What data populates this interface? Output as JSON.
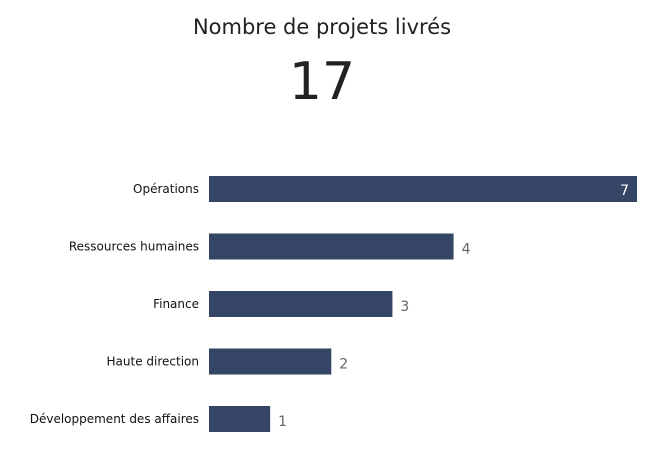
{
  "kpi": {
    "title": "Nombre de projets livrés",
    "value": "17"
  },
  "colors": {
    "bar": "#344566",
    "inside_label": "#ffffff",
    "outside_label": "#666666"
  },
  "chart_data": {
    "type": "bar",
    "orientation": "horizontal",
    "categories": [
      "Opérations",
      "Ressources humaines",
      "Finance",
      "Haute direction",
      "Développement des affaires"
    ],
    "values": [
      7,
      4,
      3,
      2,
      1
    ],
    "xlim": [
      0,
      7
    ],
    "grid": false,
    "legend": "none"
  }
}
